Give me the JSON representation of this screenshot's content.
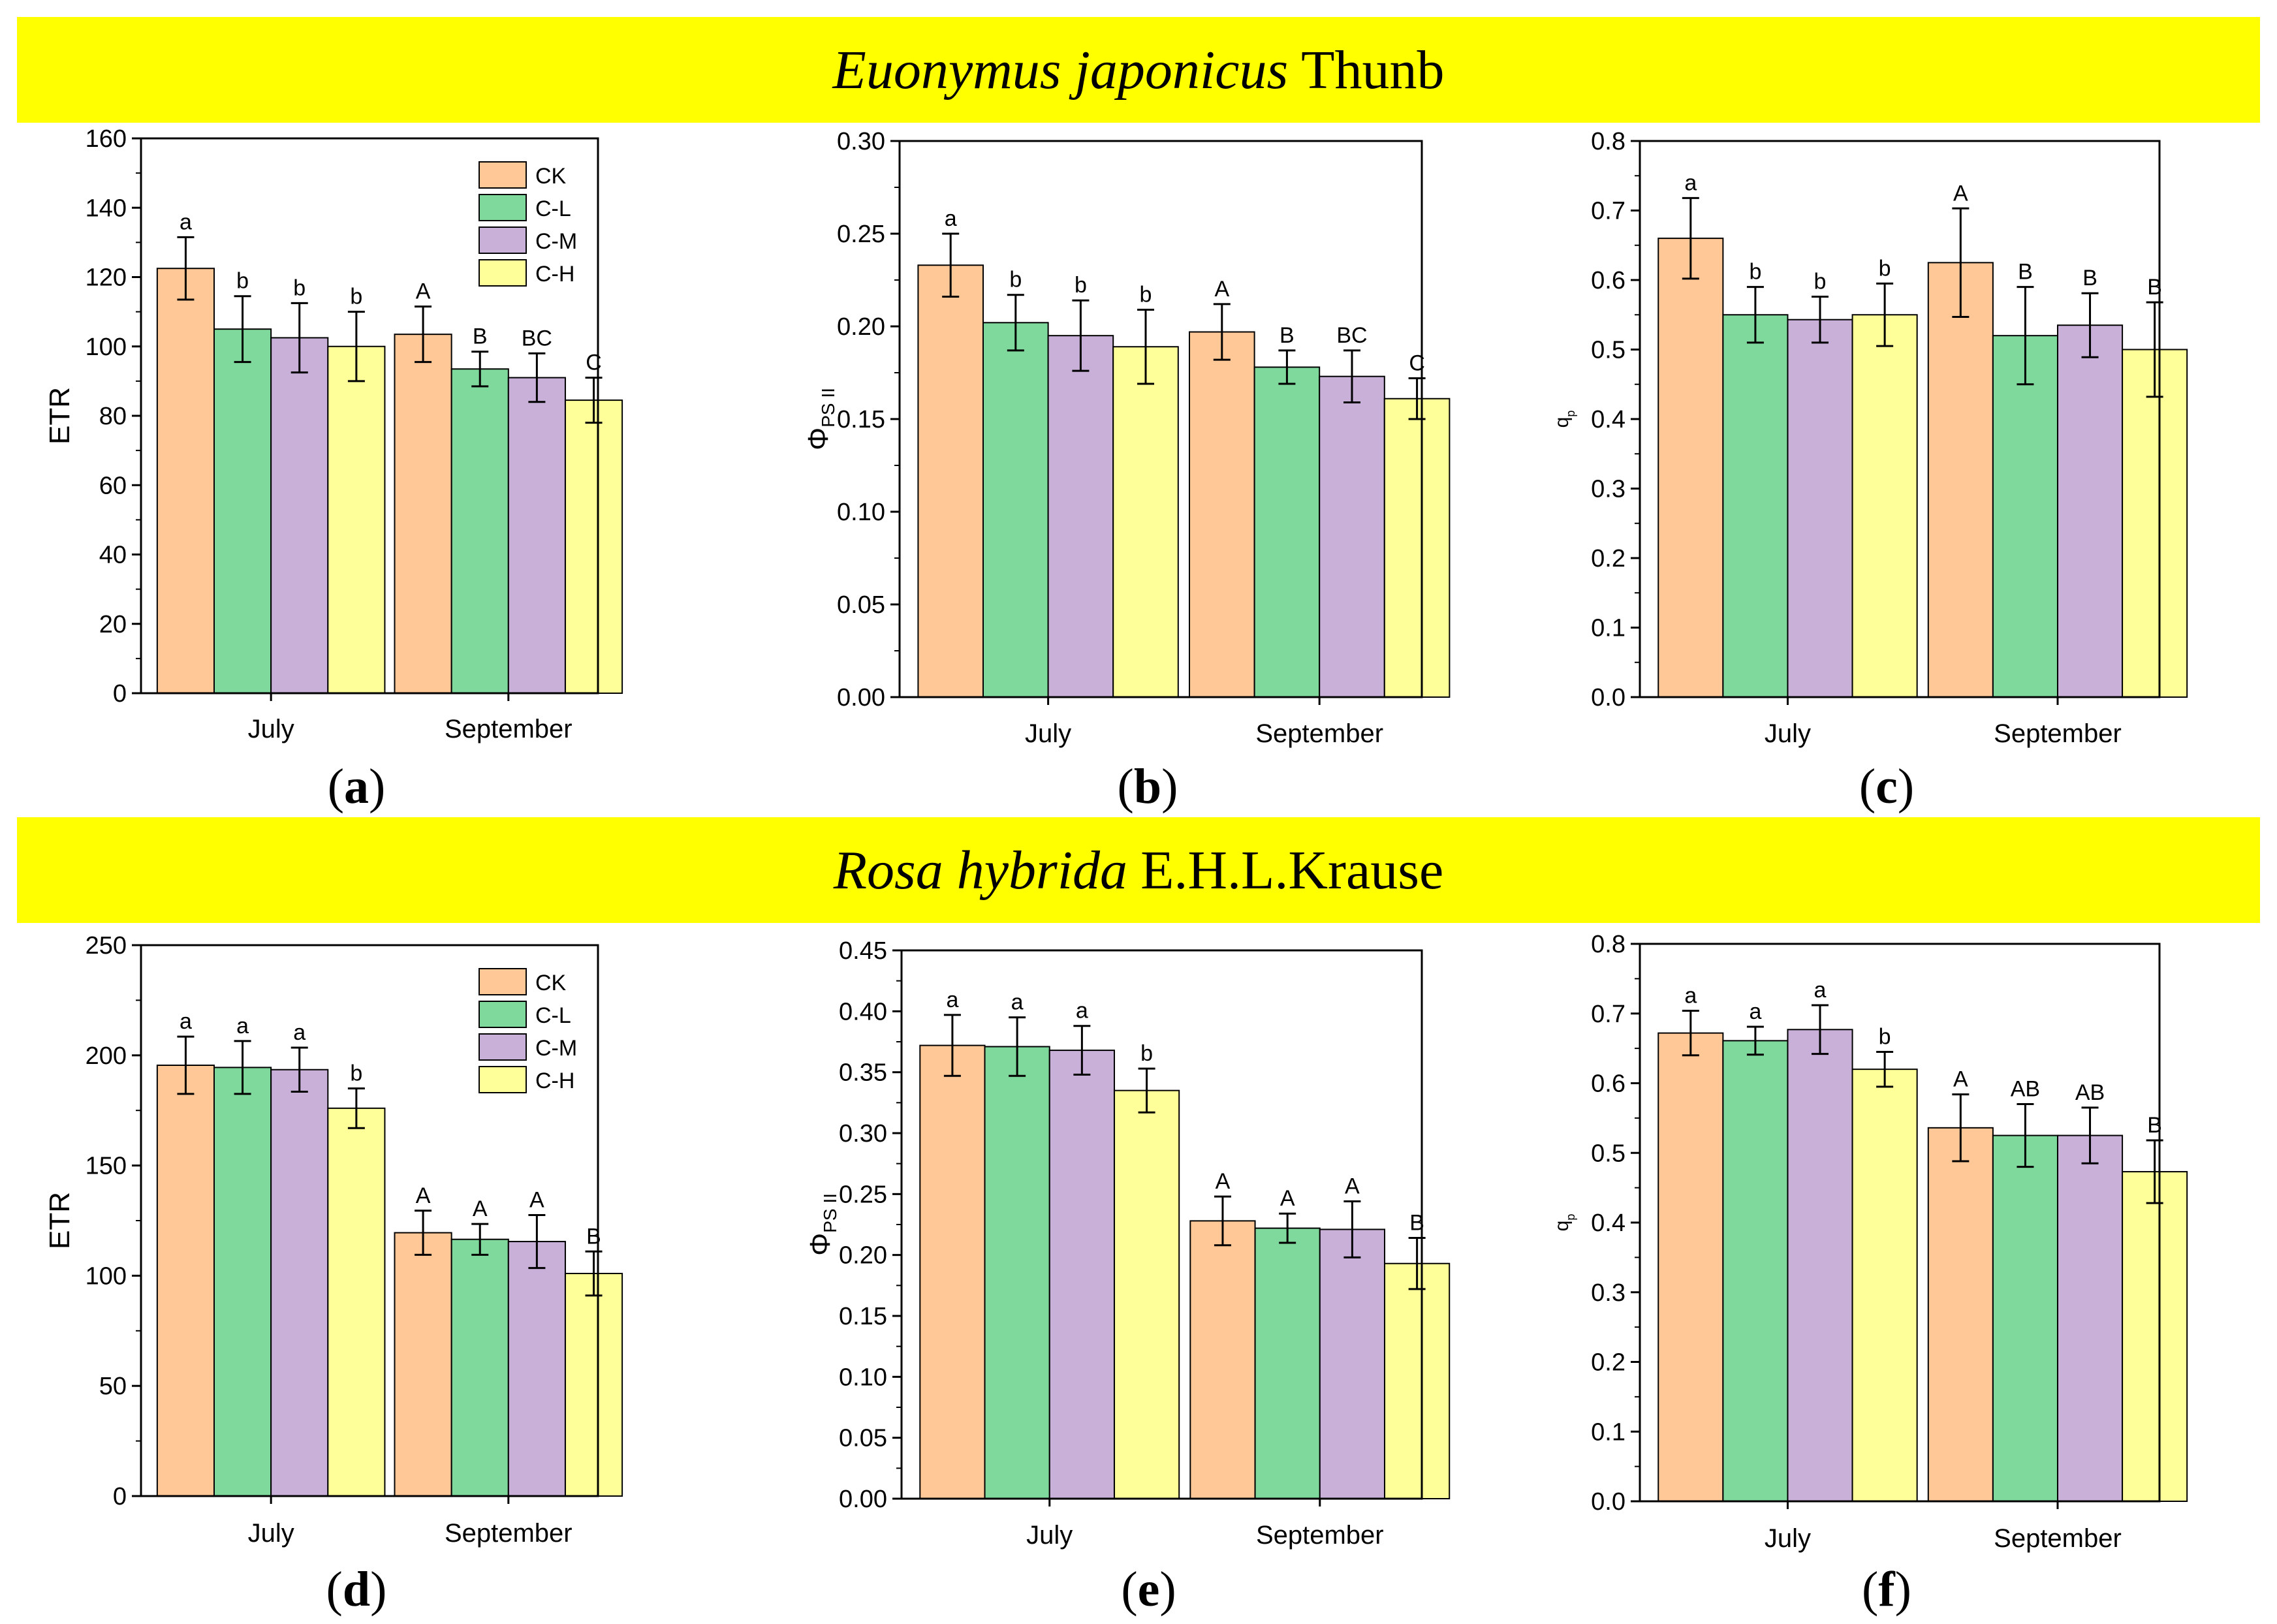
{
  "banners": [
    {
      "species": "Euonymus japonicus",
      "authority": "Thunb"
    },
    {
      "species": "Rosa hybrida",
      "authority": "E.H.L.Krause"
    }
  ],
  "colors": {
    "CK": "#ffc896",
    "C-L": "#80d99c",
    "C-M": "#c8b0d8",
    "C-H": "#ffff99",
    "banner": "#ffff00"
  },
  "legend": [
    "CK",
    "C-L",
    "C-M",
    "C-H"
  ],
  "chart_data": [
    {
      "panel": "a",
      "type": "bar",
      "ylabel": "ETR",
      "ylim": [
        0,
        160
      ],
      "yticks": [
        "0",
        "20",
        "40",
        "60",
        "80",
        "100",
        "120",
        "140",
        "160"
      ],
      "categories": [
        "July",
        "September"
      ],
      "legend": "top-right",
      "series": [
        {
          "name": "CK",
          "values": [
            122.5,
            103.5
          ],
          "errors": [
            9,
            8
          ],
          "letters": [
            "a",
            "A"
          ]
        },
        {
          "name": "C-L",
          "values": [
            105,
            93.5
          ],
          "errors": [
            9.5,
            5
          ],
          "letters": [
            "b",
            "B"
          ]
        },
        {
          "name": "C-M",
          "values": [
            102.5,
            91
          ],
          "errors": [
            10,
            7
          ],
          "letters": [
            "b",
            "BC"
          ]
        },
        {
          "name": "C-H",
          "values": [
            100,
            84.5
          ],
          "errors": [
            10,
            6.5
          ],
          "letters": [
            "b",
            "C"
          ]
        }
      ]
    },
    {
      "panel": "b",
      "type": "bar",
      "ylabel": "Φ",
      "ylabel_sub": "PS II",
      "ylim": [
        0,
        0.3
      ],
      "yticks": [
        "0.00",
        "0.05",
        "0.10",
        "0.15",
        "0.20",
        "0.25",
        "0.30"
      ],
      "categories": [
        "July",
        "September"
      ],
      "series": [
        {
          "name": "CK",
          "values": [
            0.233,
            0.197
          ],
          "errors": [
            0.017,
            0.015
          ],
          "letters": [
            "a",
            "A"
          ]
        },
        {
          "name": "C-L",
          "values": [
            0.202,
            0.178
          ],
          "errors": [
            0.015,
            0.009
          ],
          "letters": [
            "b",
            "B"
          ]
        },
        {
          "name": "C-M",
          "values": [
            0.195,
            0.173
          ],
          "errors": [
            0.019,
            0.014
          ],
          "letters": [
            "b",
            "BC"
          ]
        },
        {
          "name": "C-H",
          "values": [
            0.189,
            0.161
          ],
          "errors": [
            0.02,
            0.011
          ],
          "letters": [
            "b",
            "C"
          ]
        }
      ]
    },
    {
      "panel": "c",
      "type": "bar",
      "ylabel": "q",
      "ylabel_sub": "p",
      "ylim": [
        0,
        0.8
      ],
      "yticks": [
        "0.0",
        "0.1",
        "0.2",
        "0.3",
        "0.4",
        "0.5",
        "0.6",
        "0.7",
        "0.8"
      ],
      "categories": [
        "July",
        "September"
      ],
      "series": [
        {
          "name": "CK",
          "values": [
            0.66,
            0.625
          ],
          "errors": [
            0.058,
            0.078
          ],
          "letters": [
            "a",
            "A"
          ]
        },
        {
          "name": "C-L",
          "values": [
            0.55,
            0.52
          ],
          "errors": [
            0.04,
            0.07
          ],
          "letters": [
            "b",
            "B"
          ]
        },
        {
          "name": "C-M",
          "values": [
            0.543,
            0.535
          ],
          "errors": [
            0.033,
            0.046
          ],
          "letters": [
            "b",
            "B"
          ]
        },
        {
          "name": "C-H",
          "values": [
            0.55,
            0.5
          ],
          "errors": [
            0.045,
            0.068
          ],
          "letters": [
            "b",
            "B"
          ]
        }
      ]
    },
    {
      "panel": "d",
      "type": "bar",
      "ylabel": "ETR",
      "ylim": [
        0,
        250
      ],
      "yticks": [
        "0",
        "50",
        "100",
        "150",
        "200",
        "250"
      ],
      "categories": [
        "July",
        "September"
      ],
      "legend": "top-right",
      "series": [
        {
          "name": "CK",
          "values": [
            195.5,
            119.5
          ],
          "errors": [
            13,
            10
          ],
          "letters": [
            "a",
            "A"
          ]
        },
        {
          "name": "C-L",
          "values": [
            194.5,
            116.5
          ],
          "errors": [
            12,
            7
          ],
          "letters": [
            "a",
            "A"
          ]
        },
        {
          "name": "C-M",
          "values": [
            193.5,
            115.5
          ],
          "errors": [
            10,
            12
          ],
          "letters": [
            "a",
            "A"
          ]
        },
        {
          "name": "C-H",
          "values": [
            176,
            101
          ],
          "errors": [
            9,
            10
          ],
          "letters": [
            "b",
            "B"
          ]
        }
      ]
    },
    {
      "panel": "e",
      "type": "bar",
      "ylabel": "Φ",
      "ylabel_sub": "PS II",
      "ylim": [
        0,
        0.45
      ],
      "yticks": [
        "0.00",
        "0.05",
        "0.10",
        "0.15",
        "0.20",
        "0.25",
        "0.30",
        "0.35",
        "0.40",
        "0.45"
      ],
      "categories": [
        "July",
        "September"
      ],
      "series": [
        {
          "name": "CK",
          "values": [
            0.372,
            0.228
          ],
          "errors": [
            0.025,
            0.02
          ],
          "letters": [
            "a",
            "A"
          ]
        },
        {
          "name": "C-L",
          "values": [
            0.371,
            0.222
          ],
          "errors": [
            0.024,
            0.012
          ],
          "letters": [
            "a",
            "A"
          ]
        },
        {
          "name": "C-M",
          "values": [
            0.368,
            0.221
          ],
          "errors": [
            0.02,
            0.023
          ],
          "letters": [
            "a",
            "A"
          ]
        },
        {
          "name": "C-H",
          "values": [
            0.335,
            0.193
          ],
          "errors": [
            0.018,
            0.021
          ],
          "letters": [
            "b",
            "B"
          ]
        }
      ]
    },
    {
      "panel": "f",
      "type": "bar",
      "ylabel": "q",
      "ylabel_sub": "p",
      "ylim": [
        0,
        0.8
      ],
      "yticks": [
        "0.0",
        "0.1",
        "0.2",
        "0.3",
        "0.4",
        "0.5",
        "0.6",
        "0.7",
        "0.8"
      ],
      "categories": [
        "July",
        "September"
      ],
      "series": [
        {
          "name": "CK",
          "values": [
            0.672,
            0.536
          ],
          "errors": [
            0.032,
            0.048
          ],
          "letters": [
            "a",
            "A"
          ]
        },
        {
          "name": "C-L",
          "values": [
            0.661,
            0.525
          ],
          "errors": [
            0.02,
            0.045
          ],
          "letters": [
            "a",
            "AB"
          ]
        },
        {
          "name": "C-M",
          "values": [
            0.677,
            0.525
          ],
          "errors": [
            0.035,
            0.04
          ],
          "letters": [
            "a",
            "AB"
          ]
        },
        {
          "name": "C-H",
          "values": [
            0.62,
            0.473
          ],
          "errors": [
            0.025,
            0.045
          ],
          "letters": [
            "b",
            "B"
          ]
        }
      ]
    }
  ]
}
